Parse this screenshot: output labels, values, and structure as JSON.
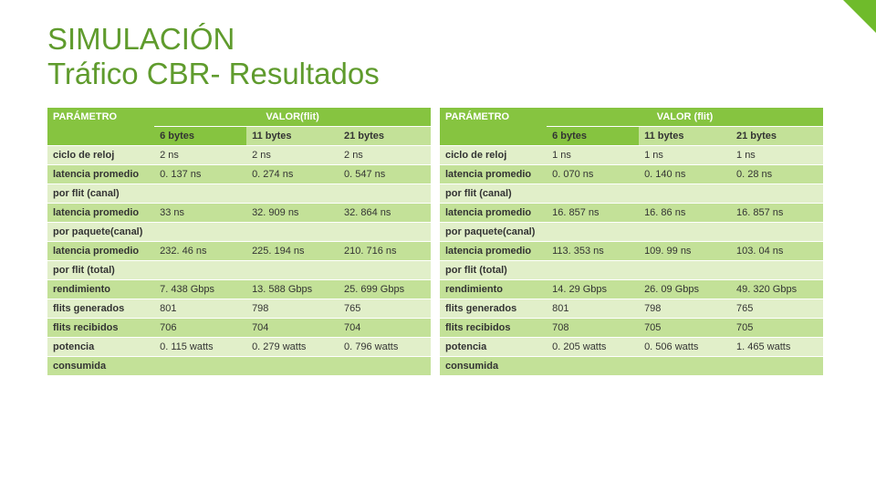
{
  "title": {
    "line1": "SIMULACIÓN",
    "line2": "Tráfico CBR- Resultados"
  },
  "palette": {
    "accent": "#86c440",
    "title_color": "#5f9b2d",
    "row_light": "#e1efc9",
    "row_dark": "#c3e198",
    "text": "#333333",
    "background": "#ffffff"
  },
  "typography": {
    "title_fontsize_pt": 25,
    "table_fontsize_pt": 8,
    "font_family": "Segoe UI"
  },
  "leftTable": {
    "type": "table",
    "header": {
      "param": "PARÁMETRO",
      "valor": "VALOR(flit)",
      "cols": [
        "6 bytes",
        "11 bytes",
        "21 bytes"
      ]
    },
    "rows": [
      {
        "label": "ciclo de reloj",
        "v": [
          "2 ns",
          "2 ns",
          "2 ns"
        ]
      },
      {
        "label": "latencia promedio",
        "v": [
          "0. 137 ns",
          "0. 274 ns",
          "0. 547 ns"
        ]
      },
      {
        "label": "por flit (canal)",
        "v": [
          "",
          "",
          ""
        ]
      },
      {
        "label": "latencia promedio",
        "v": [
          "33 ns",
          "32. 909 ns",
          "32. 864 ns"
        ]
      },
      {
        "label": "por paquete(canal)",
        "v": [
          "",
          "",
          ""
        ]
      },
      {
        "label": "latencia promedio",
        "v": [
          "232. 46 ns",
          "225. 194 ns",
          "210. 716 ns"
        ]
      },
      {
        "label": "por flit (total)",
        "v": [
          "",
          "",
          ""
        ]
      },
      {
        "label": "rendimiento",
        "v": [
          "7. 438 Gbps",
          "13. 588 Gbps",
          "25. 699 Gbps"
        ]
      },
      {
        "label": "flits generados",
        "v": [
          "801",
          "798",
          "765"
        ]
      },
      {
        "label": "flits recibidos",
        "v": [
          "706",
          "704",
          "704"
        ]
      },
      {
        "label": "potencia",
        "v": [
          "0. 115 watts",
          "0. 279 watts",
          "0. 796 watts"
        ]
      },
      {
        "label": "consumida",
        "v": [
          "",
          "",
          ""
        ]
      }
    ]
  },
  "rightTable": {
    "type": "table",
    "header": {
      "param": "PARÁMETRO",
      "valor": "VALOR (flit)",
      "cols": [
        "6 bytes",
        "11 bytes",
        "21 bytes"
      ]
    },
    "rows": [
      {
        "label": "ciclo de reloj",
        "v": [
          "1 ns",
          "1 ns",
          "1 ns"
        ]
      },
      {
        "label": "latencia promedio",
        "v": [
          "0. 070 ns",
          "0. 140 ns",
          "0. 28 ns"
        ]
      },
      {
        "label": "por flit (canal)",
        "v": [
          "",
          "",
          ""
        ]
      },
      {
        "label": "latencia promedio",
        "v": [
          "16. 857 ns",
          "16. 86 ns",
          "16. 857 ns"
        ]
      },
      {
        "label": "por paquete(canal)",
        "v": [
          "",
          "",
          ""
        ]
      },
      {
        "label": "latencia promedio",
        "v": [
          "113. 353 ns",
          "109. 99 ns",
          "103. 04 ns"
        ]
      },
      {
        "label": "por flit (total)",
        "v": [
          "",
          "",
          ""
        ]
      },
      {
        "label": "rendimiento",
        "v": [
          "14. 29 Gbps",
          "26. 09 Gbps",
          "49. 320 Gbps"
        ]
      },
      {
        "label": "flits generados",
        "v": [
          "801",
          "798",
          "765"
        ]
      },
      {
        "label": "flits recibidos",
        "v": [
          "708",
          "705",
          "705"
        ]
      },
      {
        "label": "potencia",
        "v": [
          "0. 205 watts",
          "0. 506 watts",
          "1. 465 watts"
        ]
      },
      {
        "label": "consumida",
        "v": [
          "",
          "",
          ""
        ]
      }
    ]
  }
}
